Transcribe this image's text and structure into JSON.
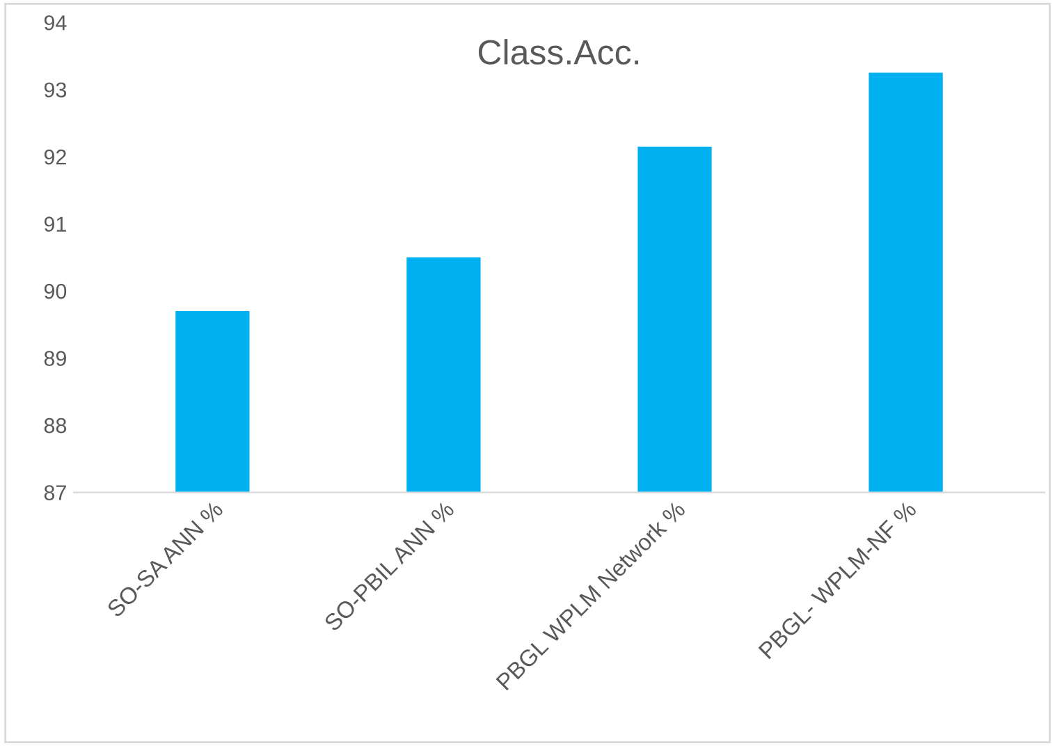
{
  "chart_data": {
    "type": "bar",
    "title": "Class.Acc.",
    "categories": [
      "SO-SA ANN %",
      "SO-PBIL ANN %",
      "PBGL WPLM Network %",
      "PBGL- WPLM-NF %"
    ],
    "values": [
      89.7,
      90.5,
      92.15,
      93.25
    ],
    "color": "#00b0f0",
    "ylim": [
      87,
      94
    ],
    "yticks": [
      87,
      88,
      89,
      90,
      91,
      92,
      93,
      94
    ],
    "grid": false,
    "legend": false
  }
}
